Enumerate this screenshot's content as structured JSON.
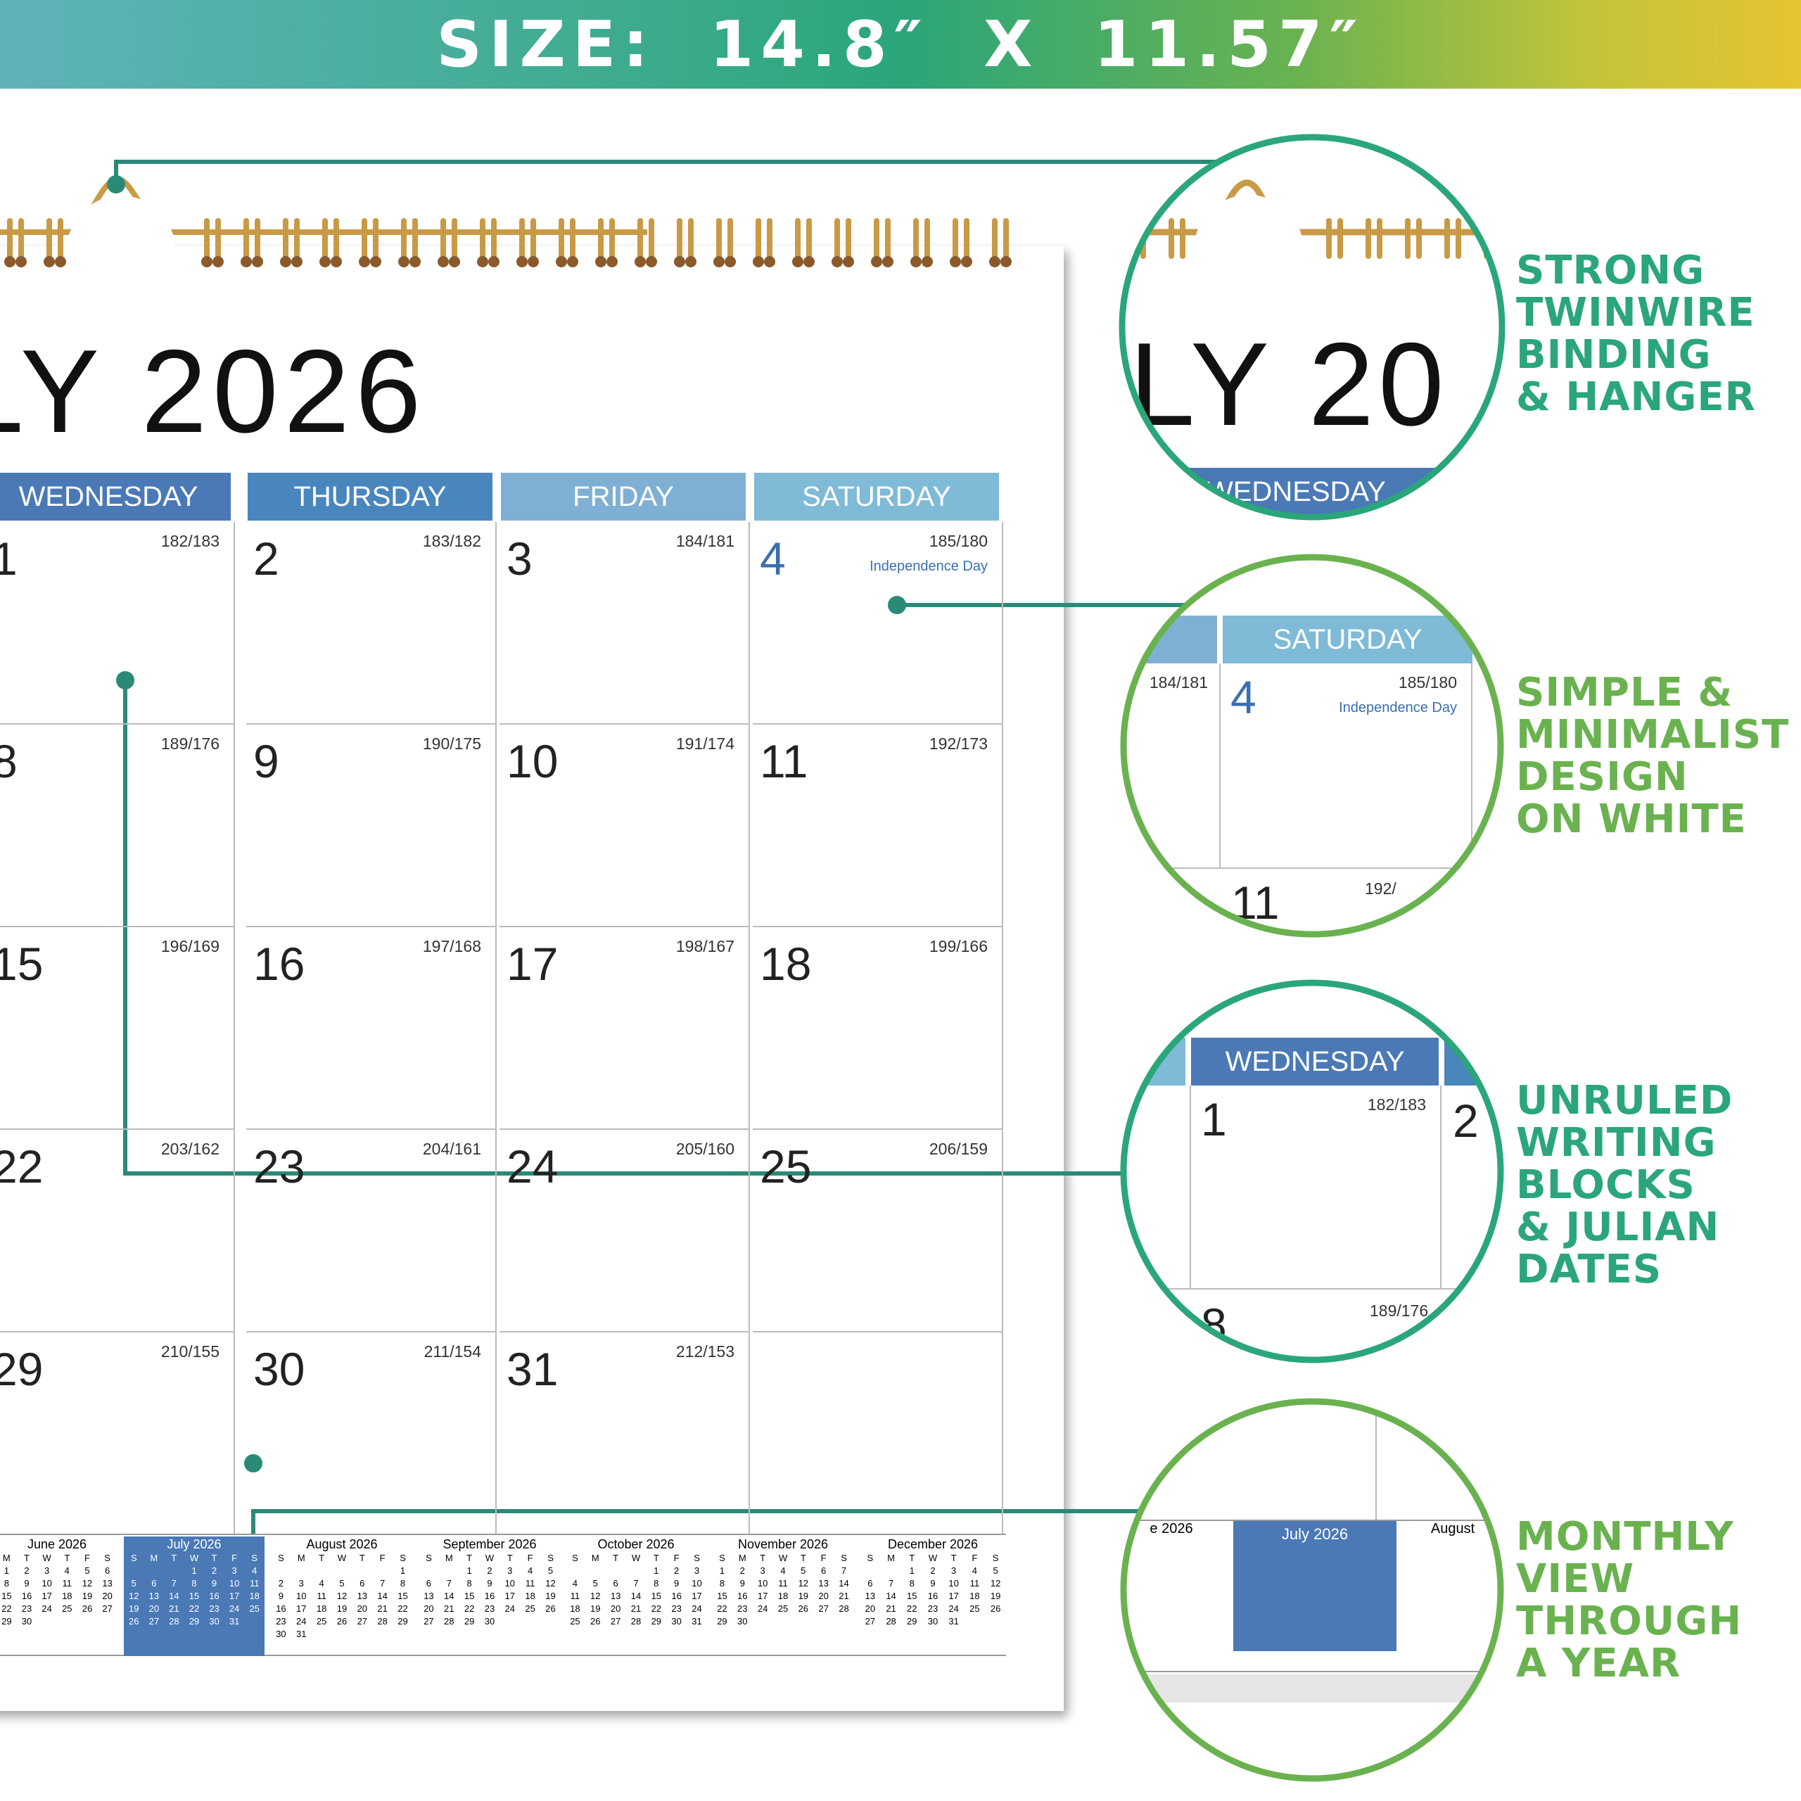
{
  "banner": {
    "text": "SIZE:  14.8″ X  11.57″"
  },
  "calendar": {
    "title": "LY 2026",
    "headers": [
      {
        "label": "WEDNESDAY",
        "color": "#4a79b6"
      },
      {
        "label": "THURSDAY",
        "color": "#4a86be"
      },
      {
        "label": "FRIDAY",
        "color": "#7fb0d3"
      },
      {
        "label": "SATURDAY",
        "color": "#7fbad6"
      }
    ],
    "weeks": [
      [
        {
          "day": "1",
          "julian": "182/183"
        },
        {
          "day": "2",
          "julian": "183/182"
        },
        {
          "day": "3",
          "julian": "184/181"
        },
        {
          "day": "4",
          "julian": "185/180",
          "holiday": "Independence Day",
          "highlight": true
        }
      ],
      [
        {
          "day": "8",
          "julian": "189/176"
        },
        {
          "day": "9",
          "julian": "190/175"
        },
        {
          "day": "10",
          "julian": "191/174"
        },
        {
          "day": "11",
          "julian": "192/173"
        }
      ],
      [
        {
          "day": "15",
          "julian": "196/169"
        },
        {
          "day": "16",
          "julian": "197/168"
        },
        {
          "day": "17",
          "julian": "198/167"
        },
        {
          "day": "18",
          "julian": "199/166"
        }
      ],
      [
        {
          "day": "22",
          "julian": "203/162"
        },
        {
          "day": "23",
          "julian": "204/161"
        },
        {
          "day": "24",
          "julian": "205/160"
        },
        {
          "day": "25",
          "julian": "206/159"
        }
      ],
      [
        {
          "day": "29",
          "julian": "210/155"
        },
        {
          "day": "30",
          "julian": "211/154"
        },
        {
          "day": "31",
          "julian": "212/153"
        },
        {
          "day": "",
          "julian": ""
        }
      ]
    ],
    "mini_months": [
      {
        "title": "June  2026",
        "dow": [
          "M",
          "T",
          "W",
          "T",
          "F",
          "S"
        ],
        "rows": [
          [
            "1",
            "2",
            "3",
            "4",
            "5",
            "6"
          ],
          [
            "8",
            "9",
            "10",
            "11",
            "12",
            "13"
          ],
          [
            "15",
            "16",
            "17",
            "18",
            "19",
            "20"
          ],
          [
            "22",
            "23",
            "24",
            "25",
            "26",
            "27"
          ],
          [
            "29",
            "30",
            "",
            "",
            "",
            ""
          ]
        ]
      },
      {
        "title": "July  2026",
        "dow": [
          "S",
          "M",
          "T",
          "W",
          "T",
          "F",
          "S"
        ],
        "highlight": true,
        "rows": [
          [
            "",
            "",
            "",
            "1",
            "2",
            "3",
            "4"
          ],
          [
            "5",
            "6",
            "7",
            "8",
            "9",
            "10",
            "11"
          ],
          [
            "12",
            "13",
            "14",
            "15",
            "16",
            "17",
            "18"
          ],
          [
            "19",
            "20",
            "21",
            "22",
            "23",
            "24",
            "25"
          ],
          [
            "26",
            "27",
            "28",
            "29",
            "30",
            "31",
            ""
          ]
        ]
      },
      {
        "title": "August  2026",
        "dow": [
          "S",
          "M",
          "T",
          "W",
          "T",
          "F",
          "S"
        ],
        "rows": [
          [
            "",
            "",
            "",
            "",
            "",
            "",
            "1"
          ],
          [
            "2",
            "3",
            "4",
            "5",
            "6",
            "7",
            "8"
          ],
          [
            "9",
            "10",
            "11",
            "12",
            "13",
            "14",
            "15"
          ],
          [
            "16",
            "17",
            "18",
            "19",
            "20",
            "21",
            "22"
          ],
          [
            "23",
            "24",
            "25",
            "26",
            "27",
            "28",
            "29"
          ],
          [
            "30",
            "31",
            "",
            "",
            "",
            "",
            ""
          ]
        ]
      },
      {
        "title": "September  2026",
        "dow": [
          "S",
          "M",
          "T",
          "W",
          "T",
          "F",
          "S"
        ],
        "rows": [
          [
            "",
            "",
            "1",
            "2",
            "3",
            "4",
            "5"
          ],
          [
            "6",
            "7",
            "8",
            "9",
            "10",
            "11",
            "12"
          ],
          [
            "13",
            "14",
            "15",
            "16",
            "17",
            "18",
            "19"
          ],
          [
            "20",
            "21",
            "22",
            "23",
            "24",
            "25",
            "26"
          ],
          [
            "27",
            "28",
            "29",
            "30",
            "",
            "",
            ""
          ]
        ]
      },
      {
        "title": "October  2026",
        "dow": [
          "S",
          "M",
          "T",
          "W",
          "T",
          "F",
          "S"
        ],
        "rows": [
          [
            "",
            "",
            "",
            "",
            "1",
            "2",
            "3"
          ],
          [
            "4",
            "5",
            "6",
            "7",
            "8",
            "9",
            "10"
          ],
          [
            "11",
            "12",
            "13",
            "14",
            "15",
            "16",
            "17"
          ],
          [
            "18",
            "19",
            "20",
            "21",
            "22",
            "23",
            "24"
          ],
          [
            "25",
            "26",
            "27",
            "28",
            "29",
            "30",
            "31"
          ]
        ]
      },
      {
        "title": "November  2026",
        "dow": [
          "S",
          "M",
          "T",
          "W",
          "T",
          "F",
          "S"
        ],
        "rows": [
          [
            "1",
            "2",
            "3",
            "4",
            "5",
            "6",
            "7"
          ],
          [
            "8",
            "9",
            "10",
            "11",
            "12",
            "13",
            "14"
          ],
          [
            "15",
            "16",
            "17",
            "18",
            "19",
            "20",
            "21"
          ],
          [
            "22",
            "23",
            "24",
            "25",
            "26",
            "27",
            "28"
          ],
          [
            "29",
            "30",
            "",
            "",
            "",
            "",
            ""
          ]
        ]
      },
      {
        "title": "December  2026",
        "dow": [
          "S",
          "M",
          "T",
          "W",
          "T",
          "F",
          "S"
        ],
        "rows": [
          [
            "",
            "",
            "1",
            "2",
            "3",
            "4",
            "5"
          ],
          [
            "6",
            "7",
            "8",
            "9",
            "10",
            "11",
            "12"
          ],
          [
            "13",
            "14",
            "15",
            "16",
            "17",
            "18",
            "19"
          ],
          [
            "20",
            "21",
            "22",
            "23",
            "24",
            "25",
            "26"
          ],
          [
            "27",
            "28",
            "29",
            "30",
            "31",
            "",
            ""
          ]
        ]
      }
    ]
  },
  "features": [
    {
      "lines": [
        "STRONG",
        "TWINWIRE",
        "BINDING",
        "& HANGER"
      ],
      "color": "#2aa67a"
    },
    {
      "lines": [
        "SIMPLE  &",
        "MINIMALIST",
        "DESIGN",
        "ON WHITE"
      ],
      "color": "#6ab24f"
    },
    {
      "lines": [
        "UNRULED",
        "WRITING",
        "BLOCKS",
        "& JULIAN",
        "DATES"
      ],
      "color": "#2aa67a"
    },
    {
      "lines": [
        "MONTHLY",
        "VIEW",
        "THROUGH",
        "A YEAR"
      ],
      "color": "#6ab24f"
    }
  ],
  "zoom": {
    "title_fragment": "LY  20",
    "header_fragment": "WEDNESDAY",
    "saturday": {
      "label": "SATURDAY",
      "day": "4",
      "julian": "185/180",
      "holiday": "Independence Day",
      "prev_julian": "184/181",
      "next_day": "11",
      "next_julian": "192/"
    },
    "wednesday": {
      "label": "WEDNESDAY",
      "day": "1",
      "julian": "182/183",
      "next_day": "2",
      "below_day": "8",
      "below_julian": "189/176"
    },
    "mini": {
      "left_title": "e  2026",
      "center_title": "July  2026",
      "right_title": "August"
    }
  },
  "colors": {
    "callout_teal": "#2a8a78",
    "ring_teal": "#2aa67a",
    "ring_green": "#6ab24f",
    "gold": "#c99a45",
    "accent_blue": "#4a79b6"
  }
}
